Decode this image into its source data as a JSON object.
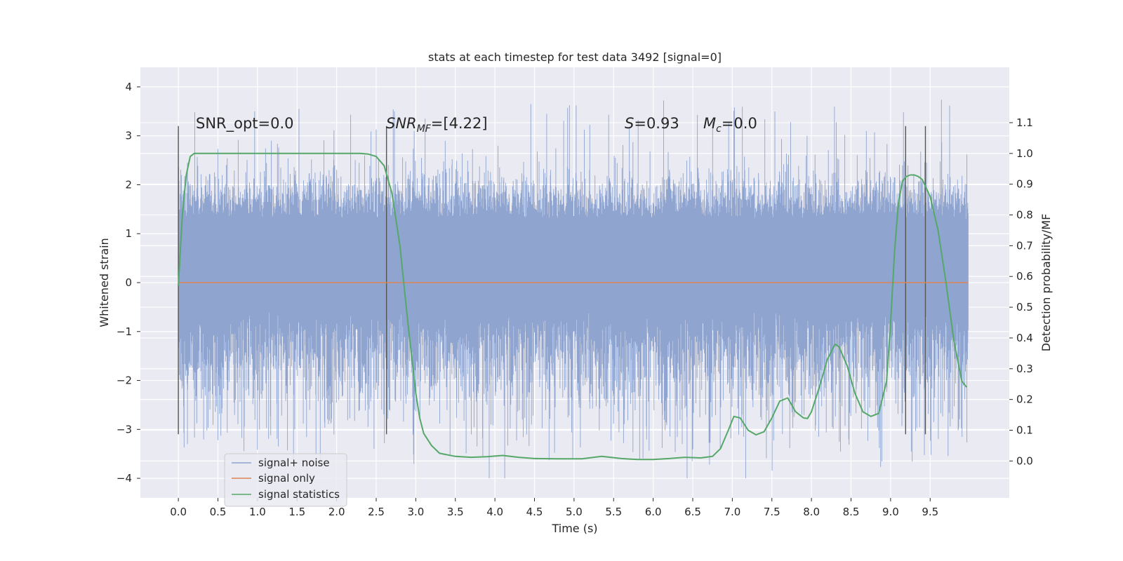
{
  "chart_data": {
    "type": "line",
    "title": "stats at each timestep for test data 3492 [signal=0]",
    "xlabel": "Time (s)",
    "ylabel": "Whitened strain",
    "ylabel_right": "Detection probability/MF",
    "xlim": [
      -0.48,
      10.5
    ],
    "ylim": [
      -4.4,
      4.4
    ],
    "ylim_right": [
      -0.12,
      1.28
    ],
    "x_ticks": [
      "0.0",
      "0.5",
      "1.0",
      "1.5",
      "2.0",
      "2.5",
      "3.0",
      "3.5",
      "4.0",
      "4.5",
      "5.0",
      "5.5",
      "6.0",
      "6.5",
      "7.0",
      "7.5",
      "8.0",
      "8.5",
      "9.0",
      "9.5"
    ],
    "y_ticks": [
      "4",
      "3",
      "2",
      "1",
      "0",
      "−1",
      "−2",
      "−3",
      "−4"
    ],
    "y_ticks_right": [
      "1.1",
      "1.0",
      "0.9",
      "0.8",
      "0.7",
      "0.6",
      "0.5",
      "0.4",
      "0.3",
      "0.2",
      "0.1",
      "0.0"
    ],
    "grid": true,
    "legend_position": "lower-left",
    "annotations": {
      "snr_opt": "SNR_opt=0.0",
      "snr_mf_italic": "SNR",
      "snr_mf_sub": "MF",
      "snr_mf_rest": "=[4.22]",
      "s_italic": "S",
      "s_rest": "=0.93",
      "mc_italic": "M",
      "mc_sub": "c",
      "mc_rest": "=0.0"
    },
    "vertical_markers_x": [
      0.0,
      2.63,
      9.19,
      9.44
    ],
    "vertical_markers_yrange": [
      -3.1,
      3.2
    ],
    "series": [
      {
        "name": "signal+ noise",
        "color": "#8fa5d0",
        "x_start": 0.0,
        "x_end": 9.98,
        "envelope_core": [
          -0.6,
          1.3
        ],
        "typical_range": [
          -2.0,
          2.0
        ],
        "extreme_range": [
          -4.0,
          4.05
        ]
      },
      {
        "name": "signal only",
        "color": "#dd8452",
        "x": [
          0.0,
          9.98
        ],
        "y": [
          0.0,
          0.0
        ]
      },
      {
        "name": "signal statistics",
        "color": "#55a868",
        "axis": "right",
        "x": [
          0.0,
          0.05,
          0.1,
          0.15,
          0.2,
          0.3,
          0.5,
          1.0,
          1.5,
          2.0,
          2.3,
          2.4,
          2.5,
          2.6,
          2.7,
          2.8,
          2.9,
          3.0,
          3.05,
          3.1,
          3.2,
          3.3,
          3.5,
          3.7,
          3.9,
          4.1,
          4.3,
          4.5,
          4.8,
          5.1,
          5.35,
          5.6,
          5.8,
          6.0,
          6.2,
          6.4,
          6.6,
          6.75,
          6.85,
          6.95,
          7.02,
          7.1,
          7.2,
          7.3,
          7.4,
          7.5,
          7.6,
          7.7,
          7.8,
          7.9,
          7.95,
          8.0,
          8.1,
          8.2,
          8.3,
          8.35,
          8.45,
          8.55,
          8.65,
          8.75,
          8.85,
          8.95,
          9.0,
          9.05,
          9.1,
          9.15,
          9.2,
          9.25,
          9.3,
          9.35,
          9.4,
          9.5,
          9.6,
          9.7,
          9.8,
          9.9,
          9.96
        ],
        "y": [
          0.57,
          0.8,
          0.93,
          0.99,
          1.0,
          1.0,
          1.0,
          1.0,
          1.0,
          1.0,
          1.0,
          0.998,
          0.99,
          0.96,
          0.87,
          0.7,
          0.45,
          0.22,
          0.14,
          0.09,
          0.05,
          0.025,
          0.015,
          0.012,
          0.014,
          0.018,
          0.012,
          0.008,
          0.007,
          0.007,
          0.015,
          0.008,
          0.005,
          0.005,
          0.008,
          0.012,
          0.01,
          0.015,
          0.04,
          0.1,
          0.145,
          0.14,
          0.1,
          0.085,
          0.095,
          0.14,
          0.195,
          0.205,
          0.16,
          0.14,
          0.138,
          0.16,
          0.24,
          0.33,
          0.38,
          0.37,
          0.31,
          0.22,
          0.16,
          0.145,
          0.155,
          0.26,
          0.45,
          0.68,
          0.84,
          0.91,
          0.925,
          0.93,
          0.93,
          0.925,
          0.915,
          0.86,
          0.75,
          0.58,
          0.39,
          0.26,
          0.24
        ]
      }
    ]
  }
}
